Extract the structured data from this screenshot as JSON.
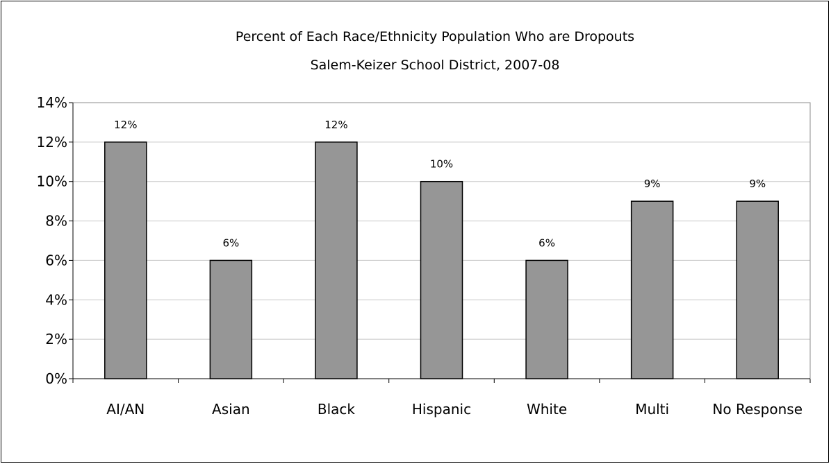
{
  "chart_data": {
    "type": "bar",
    "title": "Percent of Each Race/Ethnicity Population Who are Dropouts",
    "subtitle": "Salem-Keizer School District, 2007-08",
    "categories": [
      "AI/AN",
      "Asian",
      "Black",
      "Hispanic",
      "White",
      "Multi",
      "No Response"
    ],
    "values": [
      12,
      6,
      12,
      10,
      6,
      9,
      9
    ],
    "data_labels": [
      "12%",
      "6%",
      "12%",
      "10%",
      "6%",
      "9%",
      "9%"
    ],
    "ylim": [
      0,
      14
    ],
    "ytick_values": [
      0,
      2,
      4,
      6,
      8,
      10,
      12,
      14
    ],
    "ytick_labels": [
      "0%",
      "2%",
      "4%",
      "6%",
      "8%",
      "10%",
      "12%",
      "14%"
    ],
    "grid": true,
    "legend": "none",
    "xlabel": "",
    "ylabel": "",
    "colors": {
      "bar_fill": "#969696",
      "bar_stroke": "#000000",
      "grid": "#c8c8c8"
    }
  }
}
